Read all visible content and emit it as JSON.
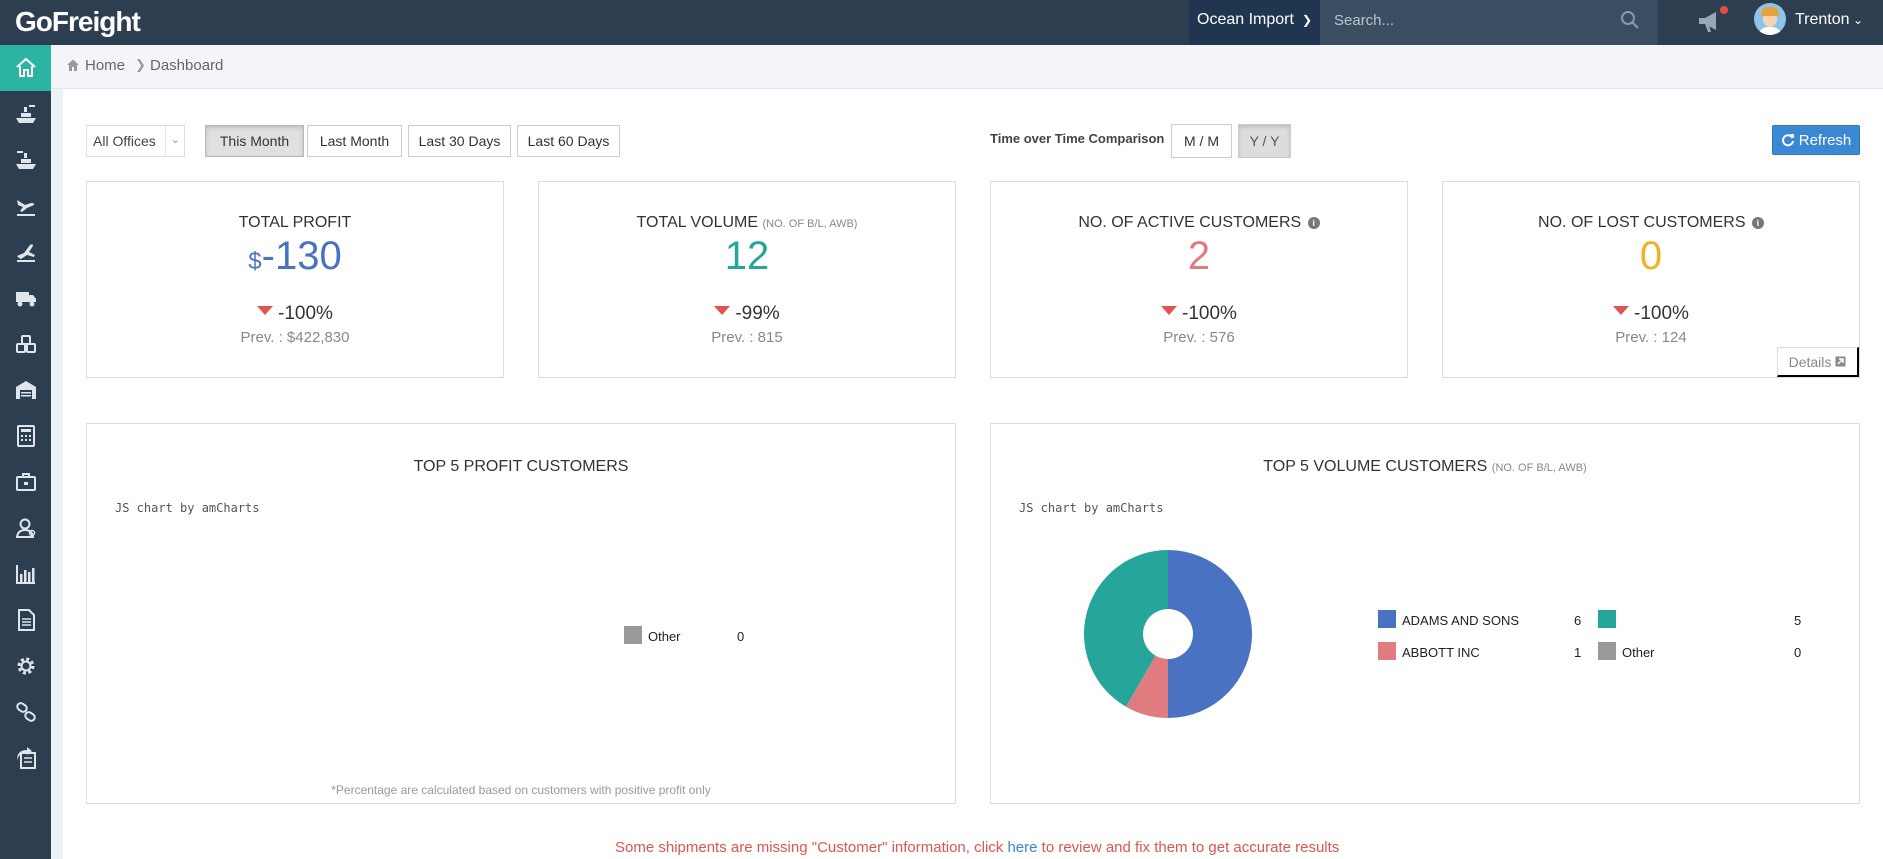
{
  "app": {
    "logo": "GoFreight"
  },
  "topbar": {
    "module": "Ocean Import",
    "search_placeholder": "Search...",
    "username": "Trenton"
  },
  "sidebar": {
    "items": [
      {
        "icon": "home-icon",
        "active": true
      },
      {
        "icon": "ocean-export-icon"
      },
      {
        "icon": "ocean-import-icon"
      },
      {
        "icon": "air-import-icon"
      },
      {
        "icon": "air-export-icon"
      },
      {
        "icon": "truck-icon"
      },
      {
        "icon": "misc-shipment-icon"
      },
      {
        "icon": "warehouse-icon"
      },
      {
        "icon": "calculator-icon"
      },
      {
        "icon": "briefcase-icon"
      },
      {
        "icon": "contacts-icon"
      },
      {
        "icon": "reports-icon"
      },
      {
        "icon": "document-icon"
      },
      {
        "icon": "gear-icon"
      },
      {
        "icon": "link-icon"
      },
      {
        "icon": "export-list-icon"
      }
    ]
  },
  "breadcrumb": {
    "home": "Home",
    "current": "Dashboard"
  },
  "filters": {
    "office": "All Offices",
    "ranges": [
      "This Month",
      "Last Month",
      "Last 30 Days",
      "Last 60 Days"
    ],
    "active_range": "This Month",
    "comparison_label": "Time over Time Comparison",
    "comparison": [
      "M / M",
      "Y / Y"
    ],
    "active_comparison": "Y / Y",
    "refresh": "Refresh"
  },
  "stats": [
    {
      "title": "TOTAL PROFIT",
      "subtitle": "",
      "currency": "$",
      "value": "-130",
      "color": "#4a72c2",
      "change": "-100%",
      "prev": "Prev. : $422,830"
    },
    {
      "title": "TOTAL VOLUME",
      "subtitle": "(NO. OF B/L, AWB)",
      "currency": "",
      "value": "12",
      "color": "#26a69a",
      "change": "-99%",
      "prev": "Prev. : 815"
    },
    {
      "title": "NO. OF ACTIVE CUSTOMERS",
      "subtitle": "",
      "currency": "",
      "value": "2",
      "color": "#e07b7f",
      "change": "-100%",
      "prev": "Prev. : 576"
    },
    {
      "title": "NO. OF LOST CUSTOMERS",
      "subtitle": "",
      "currency": "",
      "value": "0",
      "color": "#f0b323",
      "change": "-100%",
      "prev": "Prev. : 124",
      "details": "Details"
    }
  ],
  "profit_panel": {
    "title": "TOP 5 PROFIT CUSTOMERS",
    "watermark": "JS chart by amCharts",
    "footnote": "*Percentage are calculated based on customers with positive profit only"
  },
  "volume_panel": {
    "title": "TOP 5 VOLUME CUSTOMERS",
    "subtitle": "(NO. OF B/L, AWB)",
    "watermark": "JS chart by amCharts"
  },
  "chart_data": [
    {
      "type": "pie",
      "series": [
        {
          "values": [
            0
          ]
        }
      ],
      "categories": [
        "Other"
      ],
      "colors": [
        "#999999"
      ]
    },
    {
      "type": "pie",
      "categories": [
        "ADAMS AND SONS",
        "",
        "ABBOTT INC",
        "Other"
      ],
      "series": [
        {
          "values": [
            6,
            5,
            1,
            0
          ]
        }
      ],
      "colors": [
        "#4a72c2",
        "#26a69a",
        "#e07b7f",
        "#999999"
      ]
    }
  ],
  "warning": {
    "before": "Some shipments are missing \"Customer\" information, click ",
    "link": "here",
    "after": " to review and fix them to get accurate results"
  }
}
